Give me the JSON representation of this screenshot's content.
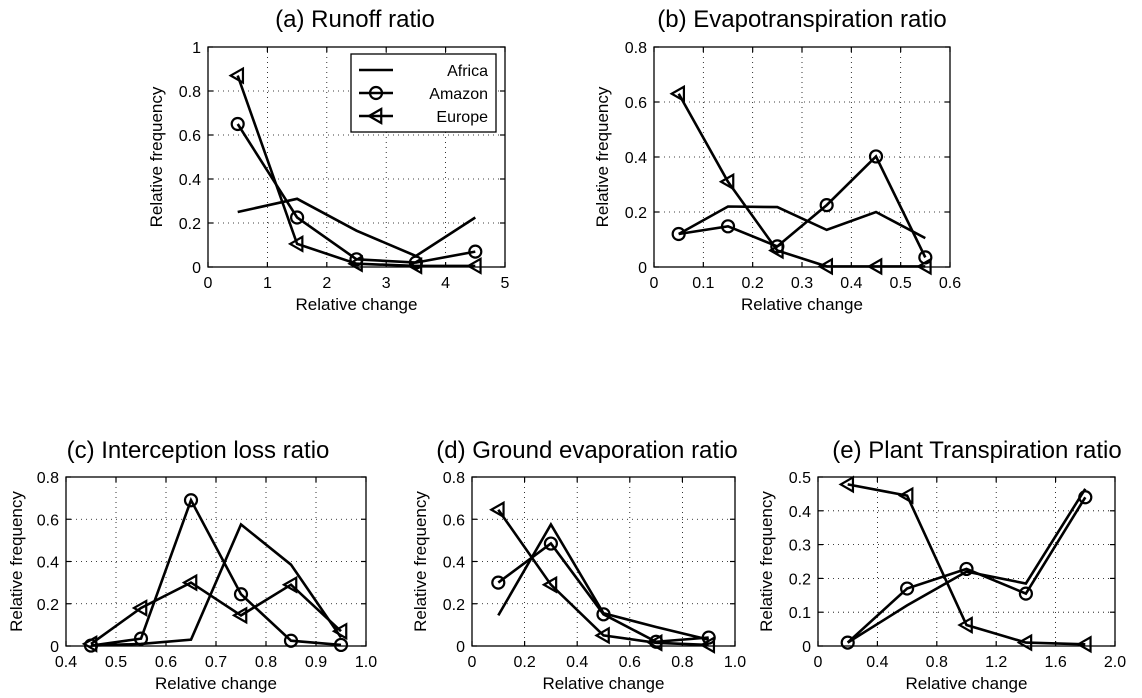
{
  "chart_data": [
    {
      "type": "line",
      "title": "(a) Runoff ratio",
      "xlabel": "Relative change",
      "ylabel": "Relative frequency",
      "xlim": [
        0,
        5
      ],
      "ylim": [
        0,
        1
      ],
      "xticks": [
        "0",
        "1",
        "2",
        "3",
        "4",
        "5"
      ],
      "yticks": [
        "0",
        "0.2",
        "0.4",
        "0.6",
        "0.8",
        "1"
      ],
      "grid": true,
      "legend": {
        "position": "top-right",
        "entries": [
          "Africa",
          "Amazon",
          "Europe"
        ]
      },
      "series": [
        {
          "name": "Africa",
          "marker": "none",
          "x": [
            0.5,
            1.5,
            2.5,
            3.5,
            4.5
          ],
          "y": [
            0.25,
            0.31,
            0.165,
            0.05,
            0.225
          ]
        },
        {
          "name": "Amazon",
          "marker": "circle",
          "x": [
            0.5,
            1.5,
            2.5,
            3.5,
            4.5
          ],
          "y": [
            0.65,
            0.225,
            0.035,
            0.02,
            0.07
          ]
        },
        {
          "name": "Europe",
          "marker": "triangle-left",
          "x": [
            0.5,
            1.5,
            2.5,
            3.5,
            4.5
          ],
          "y": [
            0.87,
            0.105,
            0.015,
            0.005,
            0.005
          ]
        }
      ]
    },
    {
      "type": "line",
      "title": "(b) Evapotranspiration ratio",
      "xlabel": "Relative change",
      "ylabel": "Relative frequency",
      "xlim": [
        0,
        0.6
      ],
      "ylim": [
        0,
        0.8
      ],
      "xticks": [
        "0",
        "0.1",
        "0.2",
        "0.3",
        "0.4",
        "0.5",
        "0.6"
      ],
      "yticks": [
        "0",
        "0.2",
        "0.4",
        "0.6",
        "0.8"
      ],
      "grid": true,
      "series": [
        {
          "name": "Africa",
          "marker": "none",
          "x": [
            0.05,
            0.15,
            0.25,
            0.35,
            0.45,
            0.55
          ],
          "y": [
            0.12,
            0.22,
            0.218,
            0.135,
            0.2,
            0.105
          ]
        },
        {
          "name": "Amazon",
          "marker": "circle",
          "x": [
            0.05,
            0.15,
            0.25,
            0.35,
            0.45,
            0.55
          ],
          "y": [
            0.12,
            0.148,
            0.075,
            0.225,
            0.402,
            0.035
          ]
        },
        {
          "name": "Europe",
          "marker": "triangle-left",
          "x": [
            0.05,
            0.15,
            0.25,
            0.35,
            0.45,
            0.55
          ],
          "y": [
            0.63,
            0.31,
            0.06,
            0.002,
            0.002,
            0.002
          ]
        }
      ]
    },
    {
      "type": "line",
      "title": "(c) Interception loss ratio",
      "xlabel": "Relative change",
      "ylabel": "Relative frequency",
      "xlim": [
        0.4,
        1.0
      ],
      "ylim": [
        0,
        0.8
      ],
      "xticks": [
        "0.4",
        "0.5",
        "0.6",
        "0.7",
        "0.8",
        "0.9",
        "1.0"
      ],
      "yticks": [
        "0",
        "0.2",
        "0.4",
        "0.6",
        "0.8"
      ],
      "grid": true,
      "series": [
        {
          "name": "Africa",
          "marker": "none",
          "x": [
            0.45,
            0.55,
            0.65,
            0.75,
            0.85,
            0.95
          ],
          "y": [
            0.002,
            0.01,
            0.03,
            0.575,
            0.385,
            0.04
          ]
        },
        {
          "name": "Amazon",
          "marker": "circle",
          "x": [
            0.45,
            0.55,
            0.65,
            0.75,
            0.85,
            0.95
          ],
          "y": [
            0.002,
            0.035,
            0.69,
            0.245,
            0.025,
            0.005
          ]
        },
        {
          "name": "Europe",
          "marker": "triangle-left",
          "x": [
            0.45,
            0.55,
            0.65,
            0.75,
            0.85,
            0.95
          ],
          "y": [
            0.01,
            0.18,
            0.3,
            0.145,
            0.29,
            0.07
          ]
        }
      ]
    },
    {
      "type": "line",
      "title": "(d) Ground evaporation ratio",
      "xlabel": "Relative change",
      "ylabel": "Relative frequency",
      "xlim": [
        0,
        1.0
      ],
      "ylim": [
        0,
        0.8
      ],
      "xticks": [
        "0",
        "0.2",
        "0.4",
        "0.6",
        "0.8",
        "1.0"
      ],
      "yticks": [
        "0",
        "0.2",
        "0.4",
        "0.6",
        "0.8"
      ],
      "grid": true,
      "series": [
        {
          "name": "Africa",
          "marker": "none",
          "x": [
            0.1,
            0.3,
            0.5,
            0.7,
            0.9
          ],
          "y": [
            0.145,
            0.575,
            0.155,
            0.09,
            0.03
          ]
        },
        {
          "name": "Amazon",
          "marker": "circle",
          "x": [
            0.1,
            0.3,
            0.5,
            0.7,
            0.9
          ],
          "y": [
            0.3,
            0.485,
            0.15,
            0.02,
            0.04
          ]
        },
        {
          "name": "Europe",
          "marker": "triangle-left",
          "x": [
            0.1,
            0.3,
            0.5,
            0.7,
            0.9
          ],
          "y": [
            0.645,
            0.29,
            0.05,
            0.015,
            0.005
          ]
        }
      ]
    },
    {
      "type": "line",
      "title": "(e) Plant Transpiration ratio",
      "xlabel": "Relative change",
      "ylabel": "Relative frequency",
      "xlim": [
        0,
        2.0
      ],
      "ylim": [
        0,
        0.5
      ],
      "xticks": [
        "0",
        "0.4",
        "0.8",
        "1.2",
        "1.6",
        "2.0"
      ],
      "yticks": [
        "0",
        "0.1",
        "0.2",
        "0.3",
        "0.4",
        "0.5"
      ],
      "grid": true,
      "series": [
        {
          "name": "Africa",
          "marker": "none",
          "x": [
            0.2,
            0.6,
            1.0,
            1.4,
            1.8
          ],
          "y": [
            0.01,
            0.12,
            0.22,
            0.185,
            0.465
          ]
        },
        {
          "name": "Amazon",
          "marker": "circle",
          "x": [
            0.2,
            0.6,
            1.0,
            1.4,
            1.8
          ],
          "y": [
            0.01,
            0.17,
            0.228,
            0.155,
            0.44
          ]
        },
        {
          "name": "Europe",
          "marker": "triangle-left",
          "x": [
            0.2,
            0.6,
            1.0,
            1.4,
            1.8
          ],
          "y": [
            0.478,
            0.445,
            0.062,
            0.01,
            0.005
          ]
        }
      ]
    }
  ]
}
